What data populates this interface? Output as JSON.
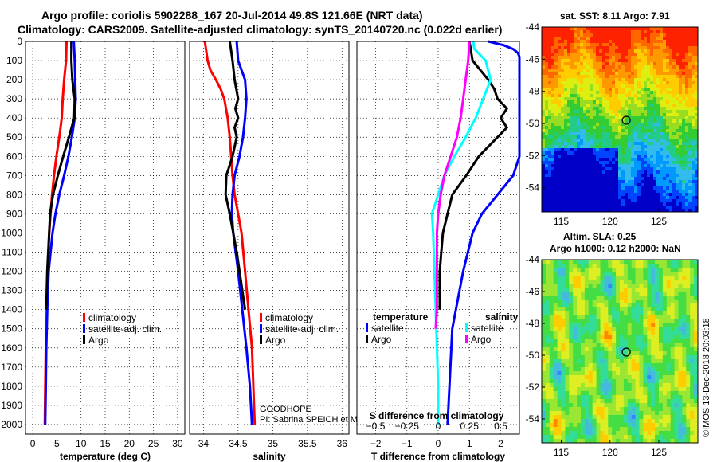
{
  "title_line1": "Argo profile: coriolis 5902288_167 20-Jul-2014 49.8S 121.66E (NRT data)",
  "title_line2": "Climatology: CARS2009. Satellite-adjusted climatology: synTS_20140720.nc (0.022d earlier)",
  "colors": {
    "climatology": "#ff0000",
    "satellite": "#0000ff",
    "argo": "#000000",
    "t_diff": "#00ffff",
    "s_diff": "#ff00ff"
  },
  "chart_data": [
    {
      "type": "line",
      "name": "temperature",
      "xlabel": "temperature (deg C)",
      "xlim": [
        -1.5,
        31.5
      ],
      "xticks": [
        0,
        5,
        10,
        15,
        20,
        25,
        30
      ],
      "xtick_labels": [
        "0",
        "5",
        "10",
        "15",
        "20",
        "25",
        "30"
      ],
      "ylim": [
        0,
        2050
      ],
      "yticks": [
        0,
        100,
        200,
        300,
        400,
        500,
        600,
        700,
        800,
        900,
        1000,
        1100,
        1200,
        1300,
        1400,
        1500,
        1600,
        1700,
        1800,
        1900,
        2000
      ],
      "ytick_labels": [
        "0",
        "100",
        "200",
        "300",
        "400",
        "500",
        "600",
        "700",
        "800",
        "900",
        "1000",
        "1100",
        "1200",
        "1300",
        "1400",
        "1500",
        "1600",
        "1700",
        "1800",
        "1900",
        "2000"
      ],
      "legend": [
        "climatology",
        "satellite-adj. clim.",
        "Argo"
      ],
      "series": [
        {
          "name": "climatology",
          "color": "#ff0000",
          "depth": [
            0,
            100,
            200,
            300,
            400,
            500,
            600,
            700,
            800,
            900,
            1000,
            1200,
            1400,
            1600,
            1800,
            2000
          ],
          "values": [
            7.0,
            6.9,
            6.5,
            6.2,
            6.0,
            5.5,
            4.9,
            4.4,
            4.0,
            3.7,
            3.4,
            3.1,
            2.9,
            2.7,
            2.6,
            2.5
          ]
        },
        {
          "name": "satellite-adj. clim.",
          "color": "#0000ff",
          "depth": [
            0,
            50,
            100,
            200,
            300,
            400,
            500,
            600,
            700,
            800,
            900,
            1000,
            1200,
            1400,
            1600,
            1800,
            2000
          ],
          "values": [
            8.5,
            8.6,
            8.7,
            8.8,
            8.9,
            8.7,
            8.1,
            7.4,
            6.5,
            5.5,
            4.7,
            4.1,
            3.3,
            3.0,
            2.8,
            2.7,
            2.6
          ]
        },
        {
          "name": "Argo",
          "color": "#000000",
          "depth": [
            0,
            100,
            200,
            300,
            400,
            500,
            600,
            700,
            800,
            900,
            1000,
            1200,
            1400
          ],
          "values": [
            8.0,
            8.0,
            8.2,
            8.7,
            8.6,
            7.5,
            6.3,
            5.2,
            4.2,
            3.6,
            3.4,
            3.0,
            2.8
          ]
        }
      ]
    },
    {
      "type": "line",
      "name": "salinity",
      "xlabel": "salinity",
      "xlim": [
        33.8,
        36.1
      ],
      "xticks": [
        34,
        34.5,
        35,
        35.5,
        36
      ],
      "xtick_labels": [
        "34",
        "34.5",
        "35",
        "35.5",
        "36"
      ],
      "ylim": [
        0,
        2050
      ],
      "legend": [
        "climatology",
        "satellite-adj. clim.",
        "Argo"
      ],
      "annotation": [
        "GOODHOPE",
        "PI: Sabrina SPEICH et Michel ARHAN"
      ],
      "series": [
        {
          "name": "climatology",
          "color": "#ff0000",
          "depth": [
            0,
            50,
            100,
            150,
            200,
            250,
            300,
            400,
            500,
            600,
            700,
            800,
            900,
            1000,
            1200,
            1400,
            1600,
            1800,
            2000
          ],
          "values": [
            34.02,
            34.04,
            34.06,
            34.1,
            34.18,
            34.25,
            34.3,
            34.35,
            34.38,
            34.4,
            34.42,
            34.45,
            34.5,
            34.55,
            34.6,
            34.65,
            34.7,
            34.72,
            34.74
          ]
        },
        {
          "name": "satellite-adj. clim.",
          "color": "#0000ff",
          "depth": [
            0,
            50,
            100,
            150,
            200,
            300,
            400,
            500,
            600,
            700,
            800,
            900,
            1000,
            1200,
            1400,
            1600,
            1800,
            2000
          ],
          "values": [
            34.48,
            34.49,
            34.5,
            34.55,
            34.6,
            34.62,
            34.6,
            34.57,
            34.52,
            34.45,
            34.42,
            34.41,
            34.43,
            34.5,
            34.56,
            34.62,
            34.67,
            34.7
          ]
        },
        {
          "name": "Argo",
          "color": "#000000",
          "depth": [
            0,
            50,
            100,
            200,
            300,
            350,
            400,
            450,
            500,
            600,
            700,
            800,
            900,
            1000,
            1100,
            1200,
            1300,
            1400
          ],
          "values": [
            34.38,
            34.4,
            34.42,
            34.45,
            34.5,
            34.46,
            34.5,
            34.45,
            34.48,
            34.42,
            34.33,
            34.32,
            34.38,
            34.43,
            34.48,
            34.52,
            34.56,
            34.6
          ]
        }
      ]
    },
    {
      "type": "line",
      "name": "difference from climatology",
      "xlabel": "T difference from climatology",
      "xlabel_top": "S difference from climatology",
      "xlim": [
        -2.6,
        2.6
      ],
      "xticks": [
        -2,
        -1,
        0,
        1,
        2
      ],
      "xtick_labels": [
        "−2",
        "−1",
        "0",
        "1",
        "2"
      ],
      "xticks_s": [
        -0.5,
        -0.25,
        0,
        0.25,
        0.5
      ],
      "xtick_labels_s": [
        "−0.5",
        "−0.25",
        "0",
        "0.25",
        "0.5"
      ],
      "ylim": [
        0,
        2050
      ],
      "legend_temperature_title": "temperature",
      "legend_salinity_title": "salinity",
      "legend_temperature": [
        "satellite",
        "Argo"
      ],
      "legend_salinity": [
        "satellite",
        "Argo"
      ],
      "series": [
        {
          "name": "temperature satellite",
          "color": "#0000ff",
          "depth": [
            0,
            20,
            40,
            60,
            80,
            100,
            150,
            300,
            400,
            500,
            600,
            700,
            800,
            900,
            1000,
            1200,
            1500,
            2000
          ],
          "values": [
            1.6,
            2.1,
            2.4,
            2.55,
            2.6,
            2.6,
            2.6,
            2.6,
            2.6,
            2.6,
            2.6,
            2.4,
            1.9,
            1.4,
            1.1,
            0.8,
            0.45,
            0.3
          ]
        },
        {
          "name": "temperature Argo",
          "color": "#000000",
          "depth": [
            0,
            100,
            200,
            250,
            300,
            350,
            400,
            450,
            500,
            600,
            700,
            800,
            900,
            1000,
            1100,
            1200,
            1300,
            1400
          ],
          "values": [
            1.0,
            1.1,
            1.6,
            1.8,
            1.9,
            2.2,
            2.0,
            2.2,
            1.9,
            1.3,
            0.9,
            0.45,
            0.3,
            0.15,
            0.1,
            0.05,
            0.05,
            0.05
          ]
        },
        {
          "name": "salinity satellite",
          "color": "#00ffff",
          "depth": [
            0,
            40,
            100,
            200,
            300,
            400,
            500,
            600,
            700,
            800,
            900,
            1000,
            1200,
            1400,
            1600,
            1800,
            2000
          ],
          "values": [
            0.28,
            0.29,
            0.38,
            0.42,
            0.36,
            0.3,
            0.22,
            0.13,
            0.05,
            0.0,
            -0.05,
            -0.04,
            -0.03,
            -0.02,
            -0.01,
            0.0,
            0.0
          ]
        },
        {
          "name": "salinity Argo",
          "color": "#ff00ff",
          "depth": [
            0,
            100,
            200,
            300,
            400,
            500,
            600,
            700,
            800,
            900,
            1000,
            1100,
            1200,
            1300,
            1400,
            1500
          ],
          "values": [
            0.25,
            0.24,
            0.22,
            0.2,
            0.18,
            0.15,
            0.1,
            0.05,
            0.02,
            0.0,
            -0.01,
            -0.01,
            -0.01,
            -0.01,
            -0.01,
            -0.02
          ]
        }
      ]
    },
    {
      "type": "heatmap",
      "name": "sat SST",
      "title": "sat. SST: 8.11 Argo: 7.91",
      "xlim": [
        113,
        129
      ],
      "ylim": [
        -55.5,
        -44
      ],
      "xticks": [
        115,
        120,
        125
      ],
      "xtick_labels": [
        "115",
        "120",
        "125"
      ],
      "yticks": [
        -44,
        -46,
        -48,
        -50,
        -52,
        -54
      ],
      "ytick_labels": [
        "-44",
        "-46",
        "-48",
        "-50",
        "-52",
        "-54"
      ],
      "marker": [
        121.66,
        -49.8
      ]
    },
    {
      "type": "heatmap",
      "name": "altimetry SLA",
      "title_line1": "Altim. SLA: 0.25",
      "title_line2": "Argo h1000: 0.12 h2000: NaN",
      "xlim": [
        113,
        129
      ],
      "ylim": [
        -55.5,
        -44
      ],
      "xticks": [
        115,
        120,
        125
      ],
      "xtick_labels": [
        "115",
        "120",
        "125"
      ],
      "yticks": [
        -44,
        -46,
        -48,
        -50,
        -52,
        -54
      ],
      "ytick_labels": [
        "-44",
        "-46",
        "-48",
        "-50",
        "-52",
        "-54"
      ],
      "marker": [
        121.66,
        -49.8
      ]
    }
  ],
  "side_note": "©IMOS 13-Dec-2018 20:03:18"
}
